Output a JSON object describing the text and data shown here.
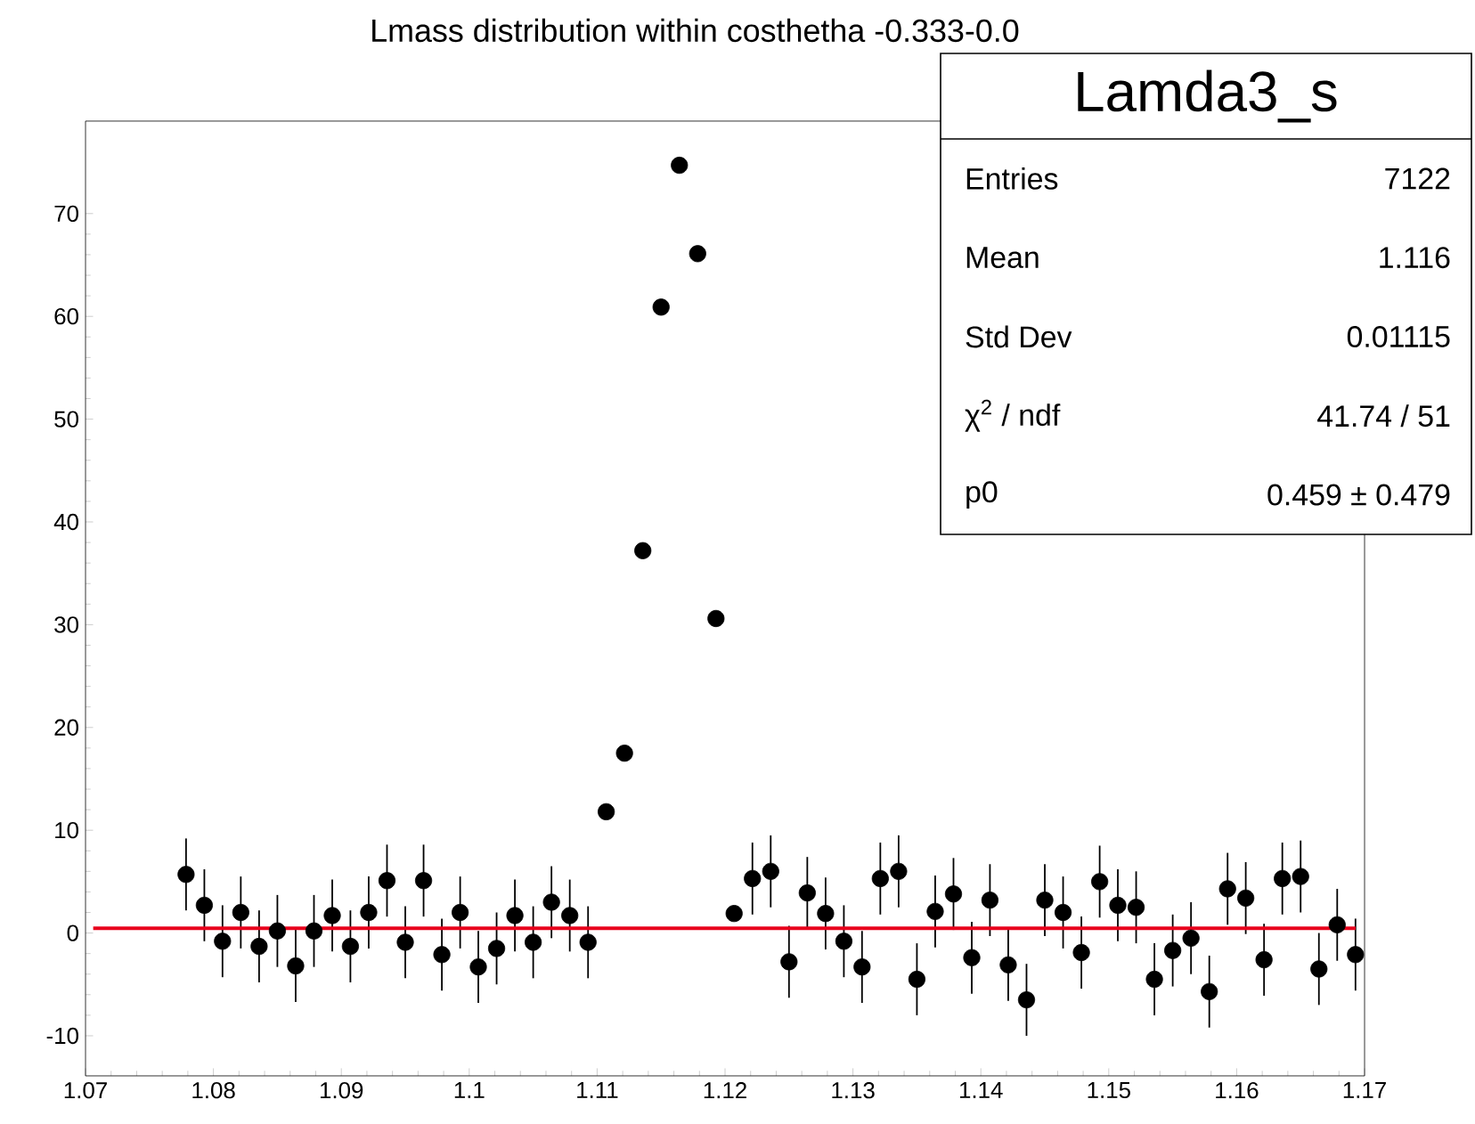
{
  "chart_data": {
    "type": "scatter",
    "title": "Lmass distribution within costhetha -0.333-0.0",
    "xlim": [
      1.07,
      1.17
    ],
    "xticks": [
      1.07,
      1.08,
      1.09,
      1.1,
      1.11,
      1.12,
      1.13,
      1.14,
      1.15,
      1.16,
      1.17
    ],
    "ylim": [
      -13.9,
      79
    ],
    "yticks": [
      -10,
      0,
      10,
      20,
      30,
      40,
      50,
      60,
      70
    ],
    "grid": false,
    "series": [
      {
        "color": "#000000",
        "marker": "circle",
        "x": [
          1.07786,
          1.07929,
          1.08071,
          1.08214,
          1.08357,
          1.085,
          1.08643,
          1.08786,
          1.08929,
          1.09071,
          1.09214,
          1.09357,
          1.095,
          1.09643,
          1.09786,
          1.09929,
          1.10071,
          1.10214,
          1.10357,
          1.105,
          1.10643,
          1.10786,
          1.10929,
          1.11071,
          1.11214,
          1.11357,
          1.115,
          1.11643,
          1.11786,
          1.11929,
          1.12071,
          1.12214,
          1.12357,
          1.125,
          1.12643,
          1.12786,
          1.12929,
          1.13071,
          1.13214,
          1.13357,
          1.135,
          1.13643,
          1.13786,
          1.13929,
          1.14071,
          1.14214,
          1.14357,
          1.145,
          1.14643,
          1.14786,
          1.14929,
          1.15071,
          1.15214,
          1.15357,
          1.155,
          1.15643,
          1.15786,
          1.15929,
          1.16071,
          1.16214,
          1.16357,
          1.165,
          1.16643,
          1.16786,
          1.16929
        ],
        "values": [
          5.7,
          2.7,
          -0.8,
          2.0,
          -1.3,
          0.2,
          -3.2,
          0.2,
          1.7,
          -1.3,
          2.0,
          5.1,
          -0.9,
          5.1,
          -2.1,
          2.0,
          -3.3,
          -1.5,
          1.7,
          -0.9,
          3.0,
          1.7,
          -0.9,
          11.8,
          17.5,
          37.2,
          60.9,
          74.7,
          66.1,
          30.6,
          1.9,
          5.3,
          6.0,
          -2.8,
          3.9,
          1.9,
          -0.8,
          -3.3,
          5.3,
          6.0,
          -4.5,
          2.1,
          3.8,
          -2.4,
          3.2,
          -3.1,
          -6.5,
          3.2,
          2.0,
          -1.9,
          5.0,
          2.7,
          2.5,
          -4.5,
          -1.7,
          -0.5,
          -5.7,
          4.3,
          3.4,
          -2.6,
          5.3,
          5.5,
          -3.5,
          0.8,
          -2.1
        ],
        "errors": [
          3.5,
          3.5,
          3.5,
          3.5,
          3.5,
          3.5,
          3.5,
          3.5,
          3.5,
          3.5,
          3.5,
          3.5,
          3.5,
          3.5,
          3.5,
          3.5,
          3.5,
          3.5,
          3.5,
          3.5,
          3.5,
          3.5,
          3.5,
          null,
          null,
          null,
          null,
          null,
          null,
          null,
          null,
          3.5,
          3.5,
          3.5,
          3.5,
          3.5,
          3.5,
          3.5,
          3.5,
          3.5,
          3.5,
          3.5,
          3.5,
          3.5,
          3.5,
          3.5,
          3.5,
          3.5,
          3.5,
          3.5,
          3.5,
          3.5,
          3.5,
          3.5,
          3.5,
          3.5,
          3.5,
          3.5,
          3.5,
          3.5,
          3.5,
          3.5,
          3.5,
          3.5,
          3.5
        ]
      },
      {
        "type": "line",
        "color": "#e8001c",
        "line_style": "solid",
        "marker": "none",
        "x": [
          1.0706,
          1.1693
        ],
        "values": [
          0.459,
          0.459
        ]
      }
    ],
    "annotations": [
      "Lamda3_s",
      "Entries",
      "7122",
      "Mean",
      "1.116",
      "Std Dev",
      "0.01115",
      "χ$^{2}$ / ndf",
      "41.74 / 51",
      "p0",
      "0.459 ± 0.479"
    ]
  }
}
